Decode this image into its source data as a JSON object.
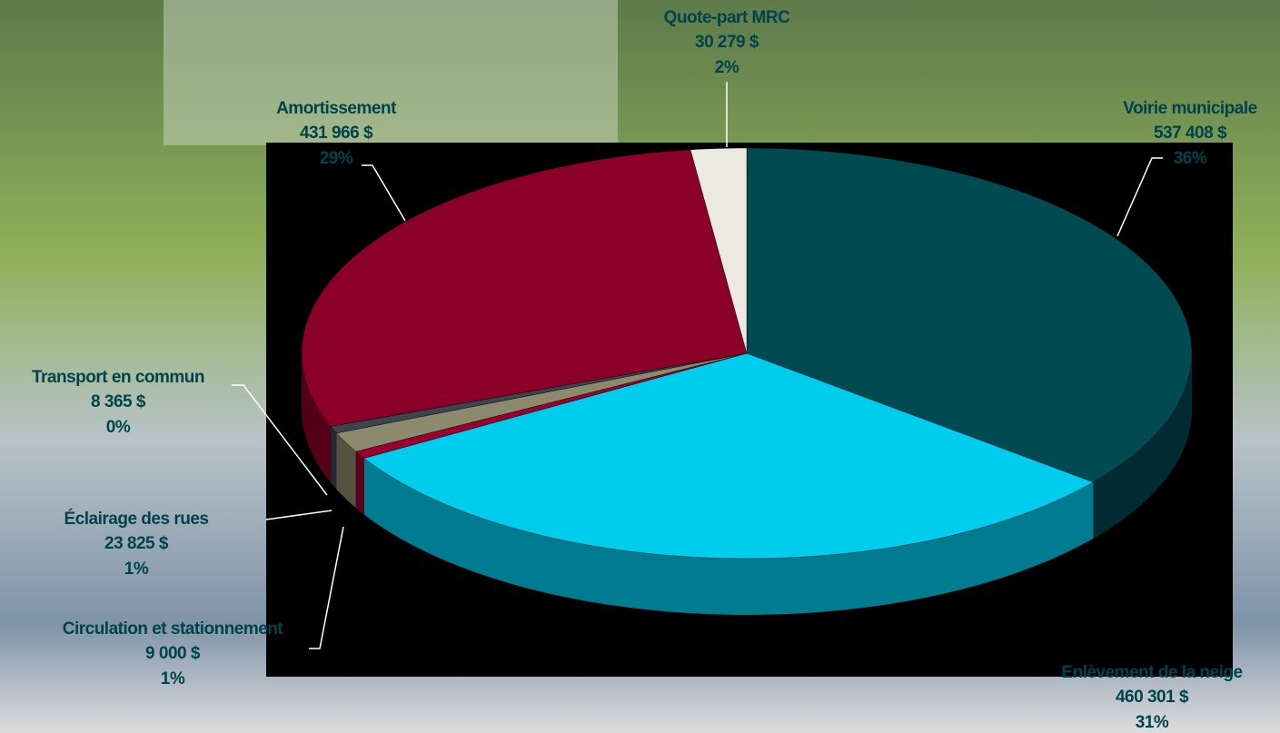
{
  "chart_data": {
    "type": "pie",
    "categories": [
      "Voirie municipale",
      "Enlèvement de la neige",
      "Circulation et stationnement",
      "Éclairage des rues",
      "Transport en commun",
      "Amortissement",
      "Quote-part MRC"
    ],
    "values": [
      537408,
      460301,
      9000,
      23825,
      8365,
      431966,
      30279
    ],
    "value_labels": [
      "537 408  $",
      "460 301  $",
      "9 000  $",
      "23 825  $",
      "8 365  $",
      "431 966  $",
      "30 279  $"
    ],
    "percent_labels": [
      "36%",
      "31%",
      "1%",
      "1%",
      "0%",
      "29%",
      "2%"
    ],
    "colors": [
      "#004a52",
      "#00cdee",
      "#9a0030",
      "#8c8a6c",
      "#3c4450",
      "#8b0028",
      "#ece9e0"
    ]
  }
}
